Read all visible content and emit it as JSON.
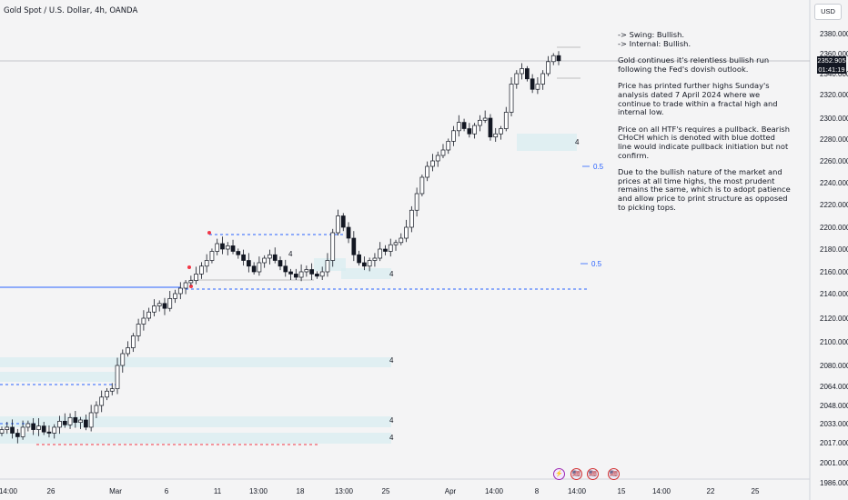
{
  "header": {
    "symbol_title": "Gold Spot / U.S. Dollar, 4h, OANDA",
    "currency_button": "USD"
  },
  "price_tag": {
    "last_price": "2352.905",
    "countdown": "01:41:19"
  },
  "notes": {
    "swing": "-> Swing:  Bullish.",
    "internal": "-> Internal:  Bullish.",
    "p1": "Gold continues it's relentless bullish run following the Fed's dovish outlook.",
    "p2": "Price has printed further highs Sunday's analysis dated 7 April 2024 where we continue to trade within a fractal high and internal low.",
    "p3": "Price on all HTF's requires a pullback.  Bearish CHoCH which is denoted with blue dotted line would indicate pullback initiation but not confirm.",
    "p4": "Due to the bullish nature of the market and prices at all time highs, the most prudent remains the same, which is to adopt patience and allow price to print structure as opposed to picking tops."
  },
  "fib_labels": [
    "0.5",
    "0.5"
  ],
  "zone_tag": "4",
  "events": [
    {
      "icon": "lightning-icon",
      "label": "⚡"
    },
    {
      "icon": "us-flag-icon",
      "label": "🇺🇸"
    },
    {
      "icon": "us-flag-icon",
      "label": "🇺🇸"
    },
    {
      "icon": "us-flag-icon",
      "label": "🇺🇸"
    }
  ],
  "colors": {
    "up": "#ffffff",
    "down": "#131722",
    "outline": "#131722",
    "zone": "#d9eef0",
    "blue": "#2962ff",
    "red": "#f23645"
  },
  "chart_data": {
    "type": "candlestick",
    "title": "Gold Spot / U.S. Dollar, 4h, OANDA",
    "y_ticks": [
      "2380.000",
      "2360.000",
      "2340.000",
      "2320.000",
      "2300.000",
      "2280.000",
      "2260.000",
      "2240.000",
      "2220.000",
      "2200.000",
      "2180.000",
      "2160.000",
      "2140.000",
      "2120.000",
      "2100.000",
      "2080.000",
      "2064.000",
      "2048.000",
      "2033.000",
      "2017.000",
      "2001.000",
      "1986.000"
    ],
    "x_ticks": [
      "14:00",
      "26",
      "Mar",
      "6",
      "11",
      "13:00",
      "18",
      "13:00",
      "25",
      "Apr",
      "14:00",
      "8",
      "14:00",
      "15",
      "14:00",
      "22",
      "25"
    ],
    "last_price": 2352.905,
    "close_path": [
      2028,
      2030,
      2025,
      2022,
      2030,
      2033,
      2028,
      2031,
      2026,
      2025,
      2030,
      2035,
      2032,
      2038,
      2034,
      2036,
      2030,
      2042,
      2048,
      2055,
      2060,
      2062,
      2080,
      2090,
      2095,
      2105,
      2115,
      2120,
      2125,
      2130,
      2132,
      2128,
      2136,
      2140,
      2145,
      2150,
      2152,
      2158,
      2165,
      2170,
      2178,
      2185,
      2180,
      2183,
      2178,
      2175,
      2170,
      2165,
      2160,
      2168,
      2172,
      2175,
      2170,
      2165,
      2160,
      2158,
      2155,
      2160,
      2162,
      2158,
      2156,
      2160,
      2170,
      2195,
      2210,
      2200,
      2190,
      2175,
      2168,
      2165,
      2170,
      2172,
      2180,
      2178,
      2184,
      2186,
      2190,
      2200,
      2215,
      2230,
      2245,
      2255,
      2260,
      2265,
      2270,
      2278,
      2288,
      2296,
      2290,
      2285,
      2293,
      2298,
      2300,
      2282,
      2285,
      2290,
      2305,
      2330,
      2340,
      2345,
      2335,
      2325,
      2330,
      2340,
      2352,
      2358,
      2352.9
    ]
  }
}
